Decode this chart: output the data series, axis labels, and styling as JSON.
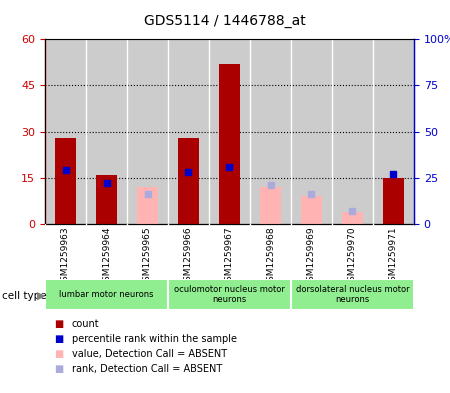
{
  "title": "GDS5114 / 1446788_at",
  "samples": [
    "GSM1259963",
    "GSM1259964",
    "GSM1259965",
    "GSM1259966",
    "GSM1259967",
    "GSM1259968",
    "GSM1259969",
    "GSM1259970",
    "GSM1259971"
  ],
  "count_values": [
    28,
    16,
    null,
    28,
    52,
    null,
    null,
    null,
    15
  ],
  "count_absent": [
    null,
    null,
    12,
    null,
    null,
    12,
    9,
    4,
    null
  ],
  "rank_values": [
    29,
    22,
    null,
    28,
    31,
    null,
    null,
    null,
    27
  ],
  "rank_absent": [
    null,
    null,
    16,
    null,
    null,
    21,
    16,
    7,
    null
  ],
  "ylim_left": [
    0,
    60
  ],
  "ylim_right": [
    0,
    100
  ],
  "yticks_left": [
    0,
    15,
    30,
    45,
    60
  ],
  "ytick_labels_left": [
    "0",
    "15",
    "30",
    "45",
    "60"
  ],
  "yticks_right": [
    0,
    25,
    50,
    75,
    100
  ],
  "ytick_labels_right": [
    "0",
    "25",
    "50",
    "75",
    "100%"
  ],
  "groups": [
    {
      "label": "lumbar motor neurons",
      "start": 0,
      "end": 2,
      "color": "#90EE90"
    },
    {
      "label": "oculomotor nucleus motor\nneurons",
      "start": 3,
      "end": 5,
      "color": "#90EE90"
    },
    {
      "label": "dorsolateral nucleus motor\nneurons",
      "start": 6,
      "end": 8,
      "color": "#90EE90"
    }
  ],
  "bar_color_present": "#aa0000",
  "bar_color_absent": "#ffb3b3",
  "marker_color_present": "#0000cc",
  "marker_color_absent": "#aaaadd",
  "bar_width": 0.5,
  "marker_size": 5,
  "bg_color": "#cccccc",
  "separator_color": "#ffffff"
}
